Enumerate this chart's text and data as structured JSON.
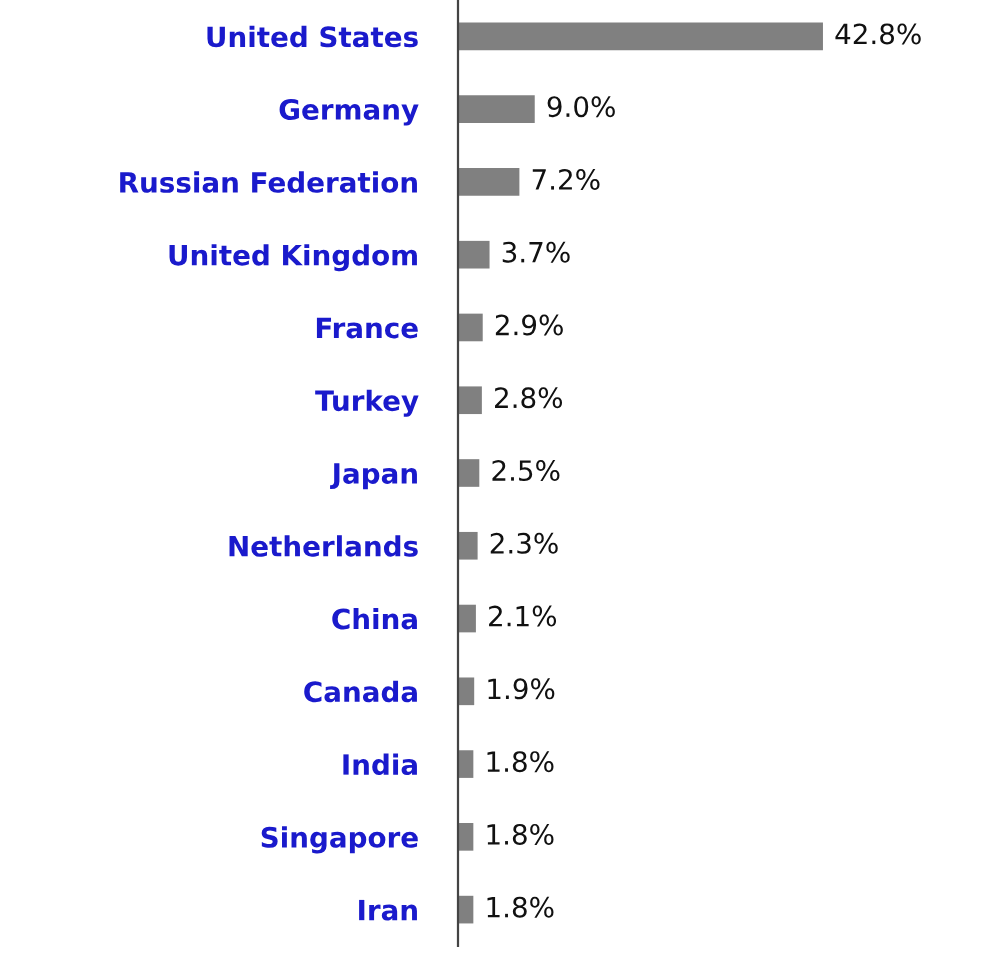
{
  "chart_data": {
    "type": "bar",
    "orientation": "horizontal",
    "categories": [
      "United States",
      "Germany",
      "Russian Federation",
      "United Kingdom",
      "France",
      "Turkey",
      "Japan",
      "Netherlands",
      "China",
      "Canada",
      "India",
      "Singapore",
      "Iran"
    ],
    "values": [
      42.8,
      9.0,
      7.2,
      3.7,
      2.9,
      2.8,
      2.5,
      2.3,
      2.1,
      1.9,
      1.8,
      1.8,
      1.8
    ],
    "value_labels": [
      "42.8%",
      "9.0%",
      "7.2%",
      "3.7%",
      "2.9%",
      "2.8%",
      "2.5%",
      "2.3%",
      "2.1%",
      "1.9%",
      "1.8%",
      "1.8%",
      "1.8%"
    ],
    "color": "#808080",
    "grid": false,
    "legend": false
  }
}
